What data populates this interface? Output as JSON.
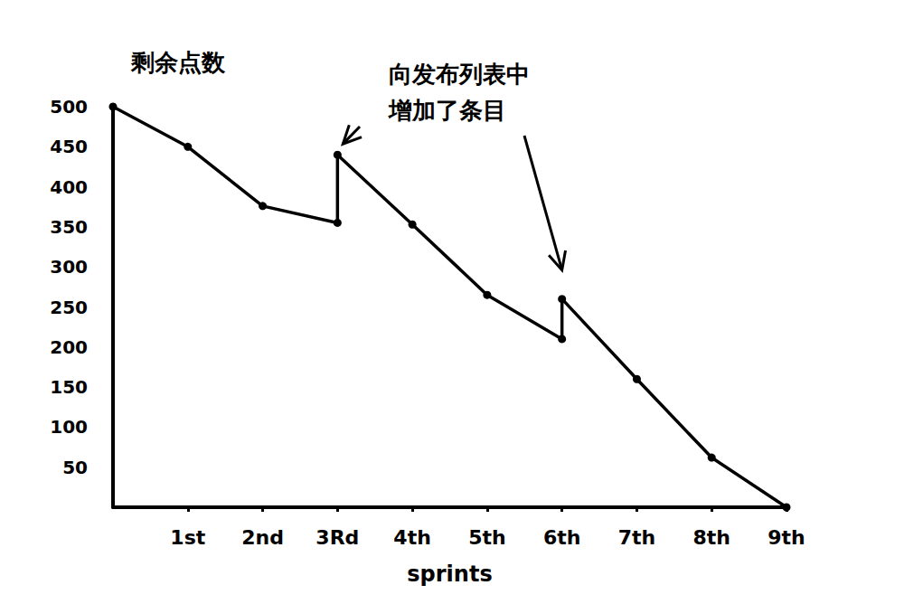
{
  "chart_data": {
    "type": "line",
    "y_label": "剩余点数",
    "x_label": "sprints",
    "annotation": "向发布列表中\n增加了条目",
    "x": [
      0,
      1,
      2,
      3,
      3,
      4,
      5,
      6,
      6,
      7,
      8,
      9
    ],
    "values": [
      500,
      450,
      376,
      355,
      440,
      353,
      265,
      210,
      260,
      160,
      62,
      0
    ],
    "xlim": [
      0,
      9
    ],
    "xticks": [
      {
        "value": 1,
        "label": "1st"
      },
      {
        "value": 2,
        "label": "2nd"
      },
      {
        "value": 3,
        "label": "3Rd"
      },
      {
        "value": 4,
        "label": "4th"
      },
      {
        "value": 5,
        "label": "5th"
      },
      {
        "value": 6,
        "label": "6th"
      },
      {
        "value": 7,
        "label": "7th"
      },
      {
        "value": 8,
        "label": "8th"
      },
      {
        "value": 9,
        "label": "9th"
      }
    ],
    "ylim": [
      0,
      500
    ],
    "yticks": [
      50,
      100,
      150,
      200,
      250,
      300,
      350,
      400,
      450,
      500
    ],
    "color": "#000000",
    "marker": "circle",
    "line_style": "solid",
    "grid": false
  }
}
